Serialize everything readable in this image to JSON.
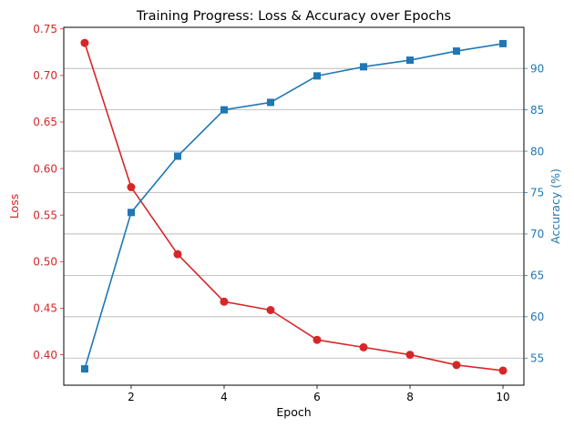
{
  "chart_data": {
    "type": "line",
    "title": "Training Progress: Loss & Accuracy over Epochs",
    "xlabel": "Epoch",
    "x": [
      1,
      2,
      3,
      4,
      5,
      6,
      7,
      8,
      9,
      10
    ],
    "xlim": [
      0.55,
      10.45
    ],
    "xticks": [
      2,
      4,
      6,
      8,
      10
    ],
    "grid": "horizontal lines at right-axis ticks",
    "series": [
      {
        "axis": "left",
        "ylabel": "Loss",
        "color": "#d62728",
        "marker": "circle",
        "values": [
          0.735,
          0.58,
          0.508,
          0.457,
          0.448,
          0.416,
          0.408,
          0.4,
          0.389,
          0.383
        ]
      },
      {
        "axis": "right",
        "ylabel": "Accuracy (%)",
        "color": "#1f77b4",
        "marker": "square",
        "values": [
          53.7,
          72.6,
          79.4,
          85.0,
          85.9,
          89.1,
          90.2,
          91.0,
          92.1,
          93.0
        ]
      }
    ],
    "left_axis": {
      "label": "Loss",
      "color": "#d62728",
      "ylim": [
        0.3673,
        0.7517
      ],
      "ticks": [
        0.4,
        0.45,
        0.5,
        0.55,
        0.6,
        0.65,
        0.7,
        0.75
      ],
      "tick_labels": [
        "0.40",
        "0.45",
        "0.50",
        "0.55",
        "0.60",
        "0.65",
        "0.70",
        "0.75"
      ]
    },
    "right_axis": {
      "label": "Accuracy (%)",
      "color": "#1f77b4",
      "ylim": [
        51.73,
        94.97
      ],
      "ticks": [
        55,
        60,
        65,
        70,
        75,
        80,
        85,
        90
      ],
      "tick_labels": [
        "55",
        "60",
        "65",
        "70",
        "75",
        "80",
        "85",
        "90"
      ]
    },
    "x_tick_labels": [
      "2",
      "4",
      "6",
      "8",
      "10"
    ]
  }
}
